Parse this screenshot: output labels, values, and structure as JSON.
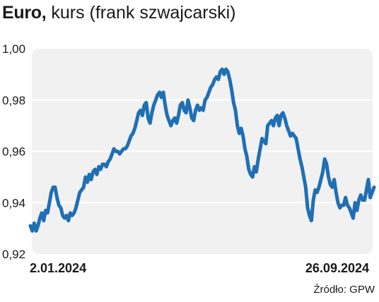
{
  "header": {
    "title_bold": "Euro,",
    "title_rest": " kurs (frank szwajcarski)"
  },
  "source": "Źródło: GPW",
  "colors": {
    "line": "#1f6fb5",
    "panel": "#f1f1f1",
    "grid": "#ffffff",
    "text": "#1a1a1a"
  },
  "chart_data": {
    "type": "line",
    "title": "Euro, kurs (frank szwajcarski)",
    "xlabel": "",
    "ylabel": "",
    "ylim": [
      0.92,
      1.0
    ],
    "yticks": [
      1.0,
      0.98,
      0.96,
      0.94,
      0.92
    ],
    "ytick_labels": [
      "1,00",
      "0,98",
      "0,96",
      "0,94",
      "0,92"
    ],
    "x_start_label": "2.01.2024",
    "x_end_label": "26.09.2024",
    "grid": true,
    "legend": "none",
    "series": [
      {
        "values": [
          0.931,
          0.929,
          0.932,
          0.929,
          0.931,
          0.934,
          0.936,
          0.933,
          0.937,
          0.936,
          0.94,
          0.944,
          0.946,
          0.946,
          0.942,
          0.939,
          0.938,
          0.935,
          0.934,
          0.935,
          0.933,
          0.936,
          0.935,
          0.936,
          0.938,
          0.941,
          0.944,
          0.945,
          0.946,
          0.95,
          0.948,
          0.951,
          0.949,
          0.952,
          0.953,
          0.951,
          0.954,
          0.953,
          0.955,
          0.955,
          0.954,
          0.956,
          0.957,
          0.959,
          0.961,
          0.96,
          0.96,
          0.959,
          0.96,
          0.961,
          0.961,
          0.962,
          0.964,
          0.966,
          0.967,
          0.969,
          0.972,
          0.975,
          0.976,
          0.974,
          0.978,
          0.979,
          0.973,
          0.971,
          0.975,
          0.978,
          0.98,
          0.982,
          0.983,
          0.981,
          0.983,
          0.978,
          0.974,
          0.972,
          0.97,
          0.972,
          0.973,
          0.971,
          0.974,
          0.978,
          0.979,
          0.976,
          0.975,
          0.98,
          0.977,
          0.973,
          0.972,
          0.976,
          0.978,
          0.976,
          0.977,
          0.976,
          0.98,
          0.981,
          0.983,
          0.985,
          0.986,
          0.988,
          0.989,
          0.988,
          0.991,
          0.992,
          0.99,
          0.992,
          0.991,
          0.988,
          0.984,
          0.979,
          0.976,
          0.97,
          0.967,
          0.969,
          0.966,
          0.961,
          0.958,
          0.953,
          0.951,
          0.95,
          0.954,
          0.952,
          0.957,
          0.961,
          0.965,
          0.964,
          0.963,
          0.97,
          0.971,
          0.972,
          0.97,
          0.973,
          0.974,
          0.97,
          0.974,
          0.975,
          0.973,
          0.97,
          0.968,
          0.966,
          0.967,
          0.966,
          0.965,
          0.961,
          0.957,
          0.954,
          0.95,
          0.946,
          0.938,
          0.935,
          0.933,
          0.941,
          0.945,
          0.944,
          0.946,
          0.949,
          0.952,
          0.957,
          0.955,
          0.95,
          0.947,
          0.946,
          0.949,
          0.944,
          0.94,
          0.938,
          0.939,
          0.939,
          0.942,
          0.939,
          0.938,
          0.936,
          0.934,
          0.94,
          0.937,
          0.941,
          0.943,
          0.941,
          0.941,
          0.945,
          0.949,
          0.942,
          0.944,
          0.946
        ]
      }
    ]
  }
}
